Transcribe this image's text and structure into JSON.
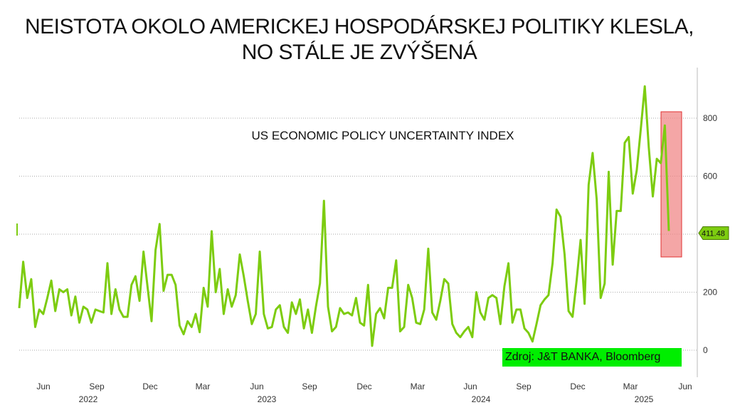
{
  "header": {
    "title_line1": "NEISTOTA OKOLO AMERICKEJ HOSPODÁRSKEJ POLITIKY KLESLA,",
    "title_line2": "NO STÁLE JE ZVÝŠENÁ"
  },
  "chart_data": {
    "type": "line",
    "title": "NEISTOTA OKOLO AMERICKEJ HOSPODÁRSKEJ POLITIKY KLESLA, NO STÁLE JE ZVÝŠENÁ",
    "subtitle": "US ECONOMIC POLICY UNCERTAINTY INDEX",
    "source": "Zdroj: J&T BANKA, Bloomberg",
    "last_value_label": "411.48",
    "ylim": [
      -90,
      960
    ],
    "y_ticks": [
      0,
      200,
      400,
      600,
      800
    ],
    "y_tick_labels": [
      "0",
      "200",
      "",
      "600",
      "800"
    ],
    "grid": true,
    "x_month_labels": [
      "Jun",
      "Sep",
      "Dec",
      "Mar",
      "Jun",
      "Sep",
      "Dec",
      "Mar",
      "Jun",
      "Sep",
      "Dec",
      "Mar",
      "Jun"
    ],
    "x_year_labels": [
      "2022",
      "2023",
      "2024",
      "2025"
    ],
    "line_color": "#7dcc10",
    "highlight_color": "#f08080",
    "series": [
      {
        "values": [
          145,
          305,
          180,
          245,
          80,
          140,
          125,
          180,
          240,
          135,
          210,
          200,
          210,
          120,
          185,
          95,
          150,
          140,
          95,
          140,
          135,
          130,
          300,
          125,
          210,
          140,
          115,
          115,
          225,
          255,
          170,
          340,
          220,
          100,
          345,
          435,
          205,
          260,
          260,
          225,
          85,
          55,
          100,
          80,
          125,
          62,
          215,
          150,
          410,
          200,
          280,
          125,
          210,
          150,
          190,
          330,
          255,
          170,
          90,
          125,
          340,
          125,
          75,
          80,
          140,
          155,
          80,
          60,
          165,
          125,
          175,
          75,
          140,
          60,
          150,
          230,
          515,
          150,
          65,
          80,
          145,
          125,
          130,
          120,
          180,
          95,
          85,
          225,
          15,
          125,
          145,
          110,
          215,
          215,
          310,
          65,
          80,
          225,
          180,
          95,
          90,
          140,
          350,
          130,
          105,
          170,
          245,
          230,
          90,
          60,
          45,
          65,
          80,
          45,
          200,
          130,
          105,
          180,
          190,
          180,
          90,
          220,
          300,
          95,
          140,
          140,
          75,
          60,
          30,
          90,
          155,
          175,
          190,
          300,
          485,
          460,
          330,
          135,
          115,
          240,
          380,
          160,
          570,
          680,
          520,
          180,
          230,
          615,
          295,
          480,
          480,
          715,
          735,
          540,
          620,
          760,
          910,
          700,
          530,
          660,
          645,
          775,
          411
        ]
      }
    ]
  }
}
